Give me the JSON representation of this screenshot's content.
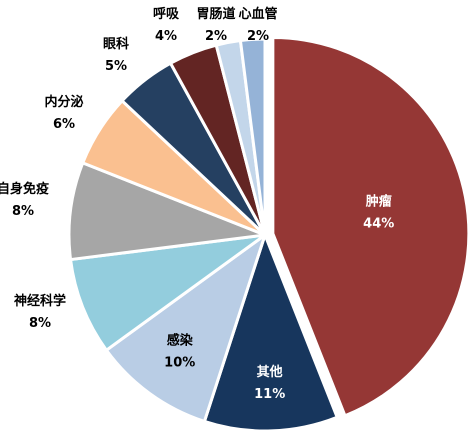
{
  "chart_data": {
    "type": "pie",
    "title": "",
    "slices": [
      {
        "name": "肿瘤",
        "value": 44,
        "label": "44%",
        "color": "#953735",
        "text_color": "#ffffff",
        "inside": true,
        "exploded": true
      },
      {
        "name": "其他",
        "value": 11,
        "label": "11%",
        "color": "#17365d",
        "text_color": "#ffffff",
        "inside": true,
        "exploded": false
      },
      {
        "name": "感染",
        "value": 10,
        "label": "10%",
        "color": "#b9cde5",
        "text_color": "#000000",
        "inside": true,
        "exploded": false
      },
      {
        "name": "神经科学",
        "value": 8,
        "label": "8%",
        "color": "#93cddd",
        "text_color": "#000000",
        "inside": false,
        "exploded": false
      },
      {
        "name": "自身免疫",
        "value": 8,
        "label": "8%",
        "color": "#a6a6a6",
        "text_color": "#000000",
        "inside": false,
        "exploded": false
      },
      {
        "name": "内分泌",
        "value": 6,
        "label": "6%",
        "color": "#fac090",
        "text_color": "#000000",
        "inside": false,
        "exploded": false
      },
      {
        "name": "眼科",
        "value": 5,
        "label": "5%",
        "color": "#254061",
        "text_color": "#000000",
        "inside": false,
        "exploded": false
      },
      {
        "name": "呼吸",
        "value": 4,
        "label": "4%",
        "color": "#632523",
        "text_color": "#000000",
        "inside": false,
        "exploded": false
      },
      {
        "name": "胃肠道",
        "value": 2,
        "label": "2%",
        "color": "#c3d6ea",
        "text_color": "#000000",
        "inside": false,
        "exploded": false
      },
      {
        "name": "心血管",
        "value": 2,
        "label": "2%",
        "color": "#95b3d7",
        "text_color": "#000000",
        "inside": false,
        "exploded": false
      }
    ]
  }
}
